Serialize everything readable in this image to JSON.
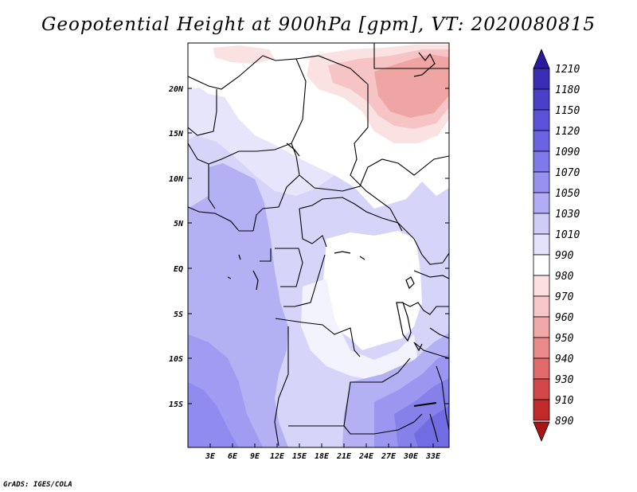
{
  "title": "Geopotential Height at 900hPa [gpm], VT: 2020080815",
  "credit": "GrADS: IGES/COLA",
  "map": {
    "lat_ticks": [
      "20N",
      "15N",
      "10N",
      "5N",
      "EQ",
      "5S",
      "10S",
      "15S"
    ],
    "lon_ticks": [
      "3E",
      "6E",
      "9E",
      "12E",
      "15E",
      "18E",
      "21E",
      "24E",
      "27E",
      "30E",
      "33E"
    ]
  },
  "colorbar": {
    "levels": [
      "1210",
      "1180",
      "1150",
      "1120",
      "1090",
      "1070",
      "1050",
      "1030",
      "1010",
      "990",
      "980",
      "970",
      "960",
      "950",
      "940",
      "930",
      "910",
      "890"
    ],
    "colors": [
      "#2b1aa0",
      "#3a2eb5",
      "#4a40c8",
      "#5a52d8",
      "#6a64e2",
      "#7f7aea",
      "#9792f0",
      "#b0adf4",
      "#cfcdf8",
      "#e4e3fb",
      "#ffffff",
      "#fce0e0",
      "#f8c6c6",
      "#f2a8a8",
      "#eb8a8a",
      "#e06a6a",
      "#d24848",
      "#c02a2a",
      "#a81515"
    ]
  }
}
